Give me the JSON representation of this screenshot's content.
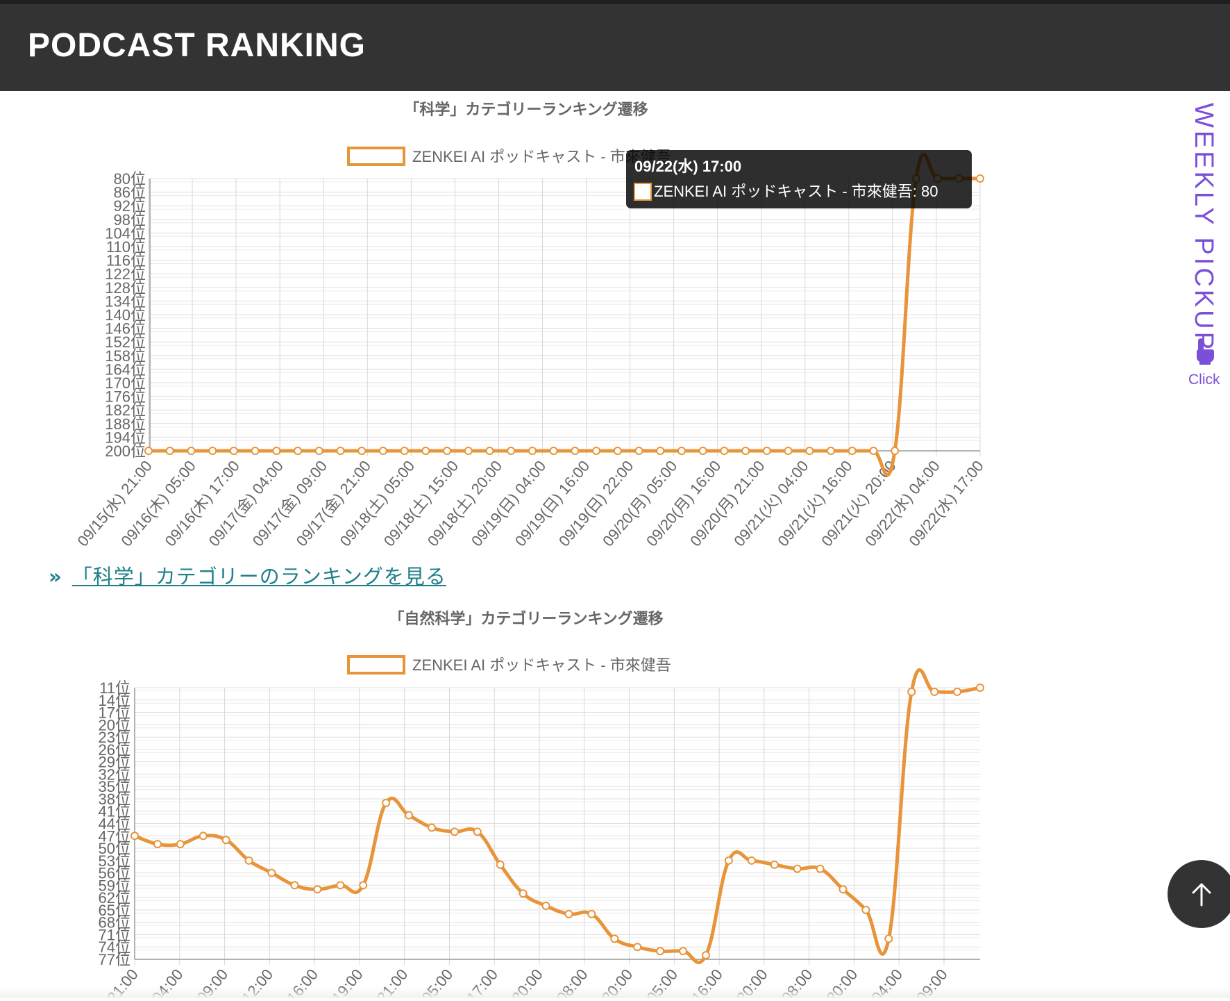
{
  "header": {
    "brand": "PODCAST RANKING"
  },
  "charts": [
    {
      "title": "「科学」カテゴリーランキング遷移",
      "legend": "ZENKEI AI ポッドキャスト - 市來健吾",
      "tooltip": {
        "title": "09/22(水) 17:00",
        "body": "ZENKEI AI ポッドキャスト - 市來健吾: 80"
      }
    },
    {
      "title": "「自然科学」カテゴリーランキング遷移",
      "legend": "ZENKEI AI ポッドキャスト - 市來健吾"
    }
  ],
  "link": {
    "chevron": "»",
    "label": "「科学」カテゴリーのランキングを見る"
  },
  "sidebar": {
    "weekly_label": "WEEKLY PICKUP",
    "click_label": "Click",
    "hand_icon": "hand-pointer-icon"
  },
  "scroll_top": {
    "icon": "arrow-up-icon"
  },
  "colors": {
    "line": "#e8943a",
    "header_bg": "#333333",
    "accent": "#7b4fd8",
    "link": "#1f7f8a"
  },
  "chart_data": [
    {
      "type": "line",
      "title": "「科学」カテゴリーランキング遷移",
      "series": [
        {
          "name": "ZENKEI AI ポッドキャスト - 市來健吾",
          "values": [
            200,
            200,
            200,
            200,
            200,
            200,
            200,
            200,
            200,
            200,
            200,
            200,
            200,
            200,
            200,
            200,
            200,
            200,
            200,
            200,
            200,
            200,
            200,
            200,
            200,
            200,
            200,
            200,
            200,
            200,
            200,
            200,
            200,
            200,
            200,
            200,
            80,
            80,
            80,
            80
          ]
        }
      ],
      "x_tick_labels": [
        "09/15(水) 21:00",
        "09/16(木) 05:00",
        "09/16(木) 17:00",
        "09/17(金) 04:00",
        "09/17(金) 09:00",
        "09/17(金) 21:00",
        "09/18(土) 05:00",
        "09/18(土) 15:00",
        "09/18(土) 20:00",
        "09/19(日) 04:00",
        "09/19(日) 16:00",
        "09/19(日) 22:00",
        "09/20(月) 05:00",
        "09/20(月) 16:00",
        "09/20(月) 21:00",
        "09/21(火) 04:00",
        "09/21(火) 16:00",
        "09/21(火) 20:00",
        "09/22(水) 04:00",
        "09/22(水) 17:00"
      ],
      "y_tick_labels": [
        "80位",
        "86位",
        "92位",
        "98位",
        "104位",
        "110位",
        "116位",
        "122位",
        "128位",
        "134位",
        "140位",
        "146位",
        "152位",
        "158位",
        "164位",
        "170位",
        "176位",
        "182位",
        "188位",
        "194位",
        "200位"
      ],
      "ylim": [
        80,
        200
      ],
      "y_reversed": true,
      "grid": true,
      "legend": "top"
    },
    {
      "type": "line",
      "title": "「自然科学」カテゴリーランキング遷移",
      "series": [
        {
          "name": "ZENKEI AI ポッドキャスト - 市來健吾",
          "values": [
            47,
            49,
            49,
            47,
            48,
            53,
            56,
            59,
            60,
            59,
            59,
            39,
            42,
            45,
            46,
            46,
            54,
            61,
            64,
            66,
            66,
            72,
            74,
            75,
            75,
            76,
            53,
            53,
            54,
            55,
            55,
            60,
            65,
            72,
            12,
            12,
            12,
            11
          ]
        }
      ],
      "x_tick_labels": [
        "21:00",
        "04:00",
        "09:00",
        "12:00",
        "16:00",
        "19:00",
        "21:00",
        "05:00",
        "17:00",
        "20:00",
        "08:00",
        "20:00",
        "05:00",
        "16:00",
        "20:00",
        "08:00",
        "20:00",
        "04:00",
        "09:00"
      ],
      "y_tick_labels": [
        "11位",
        "14位",
        "17位",
        "20位",
        "23位",
        "26位",
        "29位",
        "32位",
        "35位",
        "38位",
        "41位",
        "44位",
        "47位",
        "50位",
        "53位",
        "56位",
        "59位",
        "62位",
        "65位",
        "68位",
        "71位",
        "74位",
        "77位"
      ],
      "ylim": [
        11,
        77
      ],
      "y_reversed": true,
      "grid": true,
      "legend": "top"
    }
  ]
}
